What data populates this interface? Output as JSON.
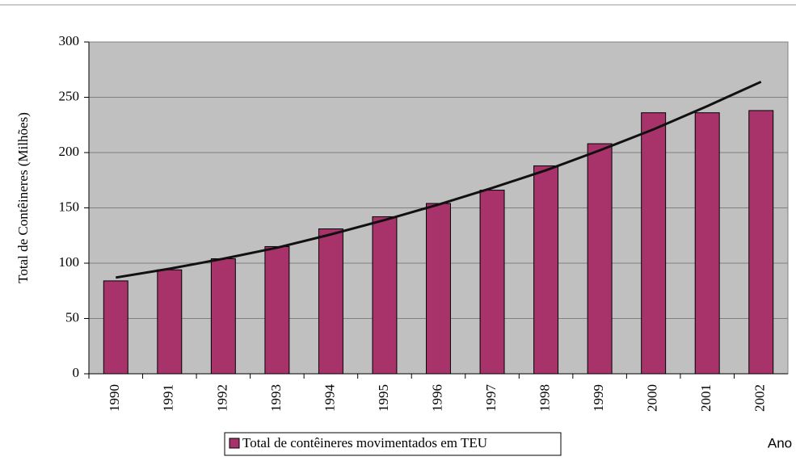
{
  "chart_data": {
    "type": "bar",
    "y_label": "Total de Contêineres (Milhões)",
    "x_label": "Ano",
    "categories": [
      "1990",
      "1991",
      "1992",
      "1993",
      "1994",
      "1995",
      "1996",
      "1997",
      "1998",
      "1999",
      "2000",
      "2001",
      "2002"
    ],
    "series": [
      {
        "name": "Total de contêineres movimentados em TEU",
        "color": "#a8336b",
        "values": [
          84,
          94,
          104,
          115,
          131,
          142,
          154,
          166,
          188,
          208,
          236,
          236,
          238
        ]
      }
    ],
    "trend": {
      "color": "#111111",
      "values": [
        87,
        95,
        104,
        114,
        126,
        139,
        153,
        168,
        184,
        202,
        221,
        242,
        264
      ]
    },
    "ylim": [
      0,
      300
    ],
    "yticks": [
      0,
      50,
      100,
      150,
      200,
      250,
      300
    ],
    "grid": true,
    "legend": "bottom"
  }
}
